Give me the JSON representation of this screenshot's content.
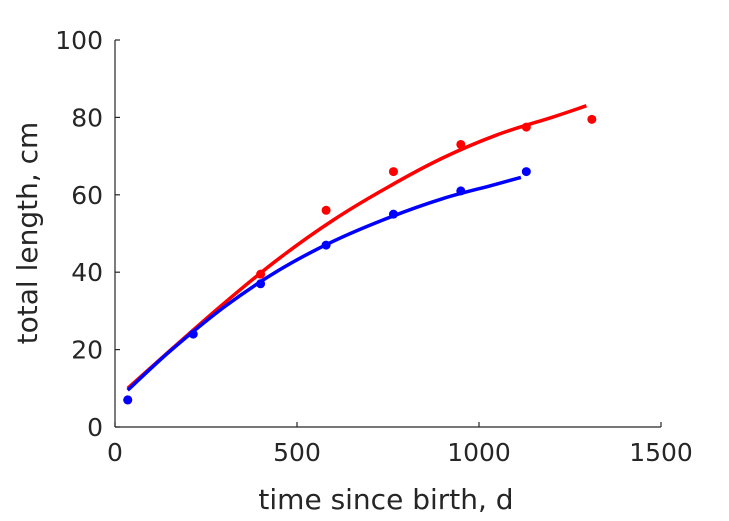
{
  "chart_data": {
    "type": "scatter",
    "title": "",
    "xlabel": "time since birth, d",
    "ylabel": "total length, cm",
    "xlim": [
      0,
      1500
    ],
    "ylim": [
      0,
      100
    ],
    "xticks": [
      0,
      500,
      1000,
      1500
    ],
    "yticks": [
      0,
      20,
      40,
      60,
      80,
      100
    ],
    "xtick_labels": [
      "0",
      "500",
      "1000",
      "1500"
    ],
    "ytick_labels": [
      "0",
      "20",
      "40",
      "60",
      "80",
      "100"
    ],
    "grid": false,
    "legend": "none",
    "series": [
      {
        "color": "#ff0000",
        "points": [
          {
            "x": 35,
            "y": 7
          },
          {
            "x": 400,
            "y": 39.5
          },
          {
            "x": 580,
            "y": 56
          },
          {
            "x": 765,
            "y": 66
          },
          {
            "x": 950,
            "y": 73
          },
          {
            "x": 1130,
            "y": 77.5
          },
          {
            "x": 1310,
            "y": 79.5
          }
        ],
        "fit_curve": [
          {
            "x": 35,
            "y": 10
          },
          {
            "x": 160,
            "y": 20.5
          },
          {
            "x": 300,
            "y": 32
          },
          {
            "x": 450,
            "y": 43.5
          },
          {
            "x": 600,
            "y": 53.5
          },
          {
            "x": 750,
            "y": 62
          },
          {
            "x": 900,
            "y": 69.5
          },
          {
            "x": 1050,
            "y": 75.5
          },
          {
            "x": 1200,
            "y": 80
          },
          {
            "x": 1295,
            "y": 83
          }
        ]
      },
      {
        "color": "#0000ff",
        "points": [
          {
            "x": 35,
            "y": 7
          },
          {
            "x": 215,
            "y": 24
          },
          {
            "x": 400,
            "y": 37
          },
          {
            "x": 580,
            "y": 47
          },
          {
            "x": 765,
            "y": 55
          },
          {
            "x": 950,
            "y": 61
          },
          {
            "x": 1130,
            "y": 66
          }
        ],
        "fit_curve": [
          {
            "x": 35,
            "y": 9.5
          },
          {
            "x": 150,
            "y": 19.5
          },
          {
            "x": 300,
            "y": 31
          },
          {
            "x": 450,
            "y": 40.5
          },
          {
            "x": 600,
            "y": 48
          },
          {
            "x": 750,
            "y": 54
          },
          {
            "x": 900,
            "y": 59
          },
          {
            "x": 1030,
            "y": 62.3
          },
          {
            "x": 1115,
            "y": 64.5
          }
        ]
      }
    ]
  }
}
